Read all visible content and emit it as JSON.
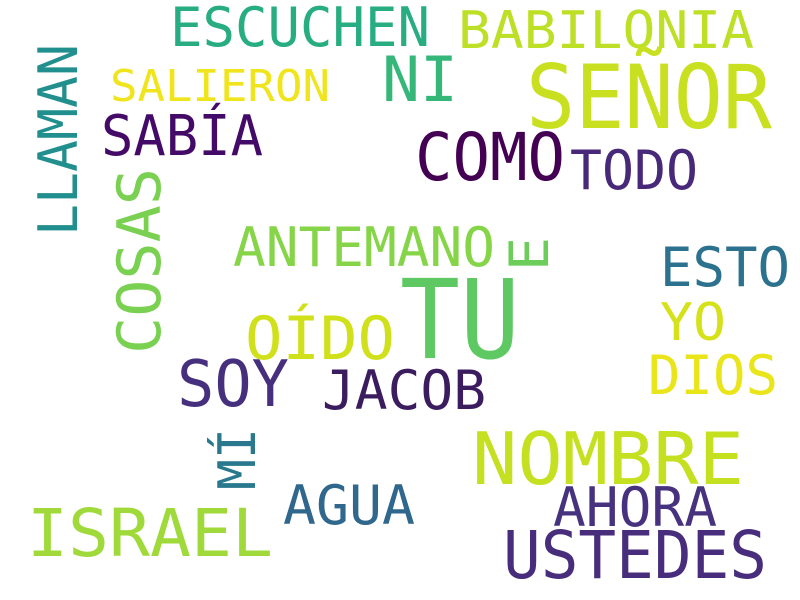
{
  "words": [
    {
      "text": "ESCUCHEN",
      "color": "#27ad81"
    },
    {
      "text": "BABILONIA",
      "color": "#bddf26"
    },
    {
      "text": "LLAMAN",
      "color": "#218f8d"
    },
    {
      "text": "SALIERON",
      "color": "#f0e51c"
    },
    {
      "text": "NI",
      "color": "#35b779"
    },
    {
      "text": "SEÑOR",
      "color": "#c8e020"
    },
    {
      "text": "SABÍA",
      "color": "#440a68"
    },
    {
      "text": "COMO",
      "color": "#440154"
    },
    {
      "text": "TODO",
      "color": "#482879"
    },
    {
      "text": "COSAS",
      "color": "#7ad151"
    },
    {
      "text": "ANTEMANO",
      "color": "#86d549"
    },
    {
      "text": "E",
      "color": "#6ccd5a"
    },
    {
      "text": "ESTO",
      "color": "#2c728e"
    },
    {
      "text": "TU",
      "color": "#5ec962"
    },
    {
      "text": "OÍDO",
      "color": "#d0e11c"
    },
    {
      "text": "YO",
      "color": "#d5e21a"
    },
    {
      "text": "DIOS",
      "color": "#eae51a"
    },
    {
      "text": "SOY",
      "color": "#46307e"
    },
    {
      "text": "JACOB",
      "color": "#3b1c5f"
    },
    {
      "text": "MÍ",
      "color": "#29788e"
    },
    {
      "text": "NOMBRE",
      "color": "#c5e021"
    },
    {
      "text": "AGUA",
      "color": "#30678d"
    },
    {
      "text": "AHORA",
      "color": "#46327e"
    },
    {
      "text": "ISRAEL",
      "color": "#9fda3a"
    },
    {
      "text": "USTEDES",
      "color": "#472d7b"
    }
  ]
}
